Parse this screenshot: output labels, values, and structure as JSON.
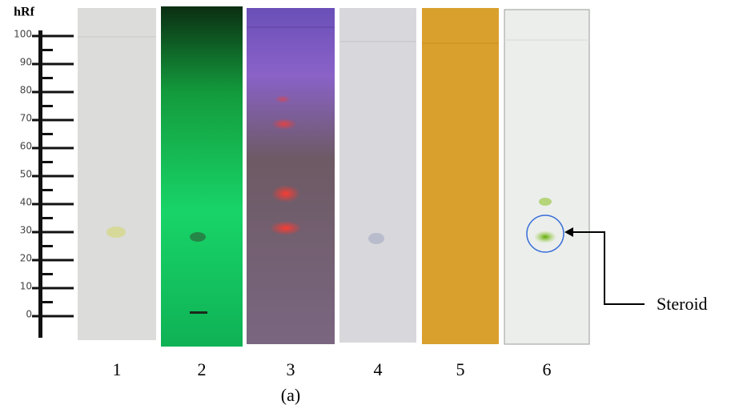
{
  "ruler": {
    "title": "hRf",
    "ticks": [
      0,
      10,
      20,
      30,
      40,
      50,
      60,
      70,
      80,
      90,
      100
    ]
  },
  "lanes": [
    "1",
    "2",
    "3",
    "4",
    "5",
    "6"
  ],
  "annotation": "Steroid",
  "caption": "(a)"
}
